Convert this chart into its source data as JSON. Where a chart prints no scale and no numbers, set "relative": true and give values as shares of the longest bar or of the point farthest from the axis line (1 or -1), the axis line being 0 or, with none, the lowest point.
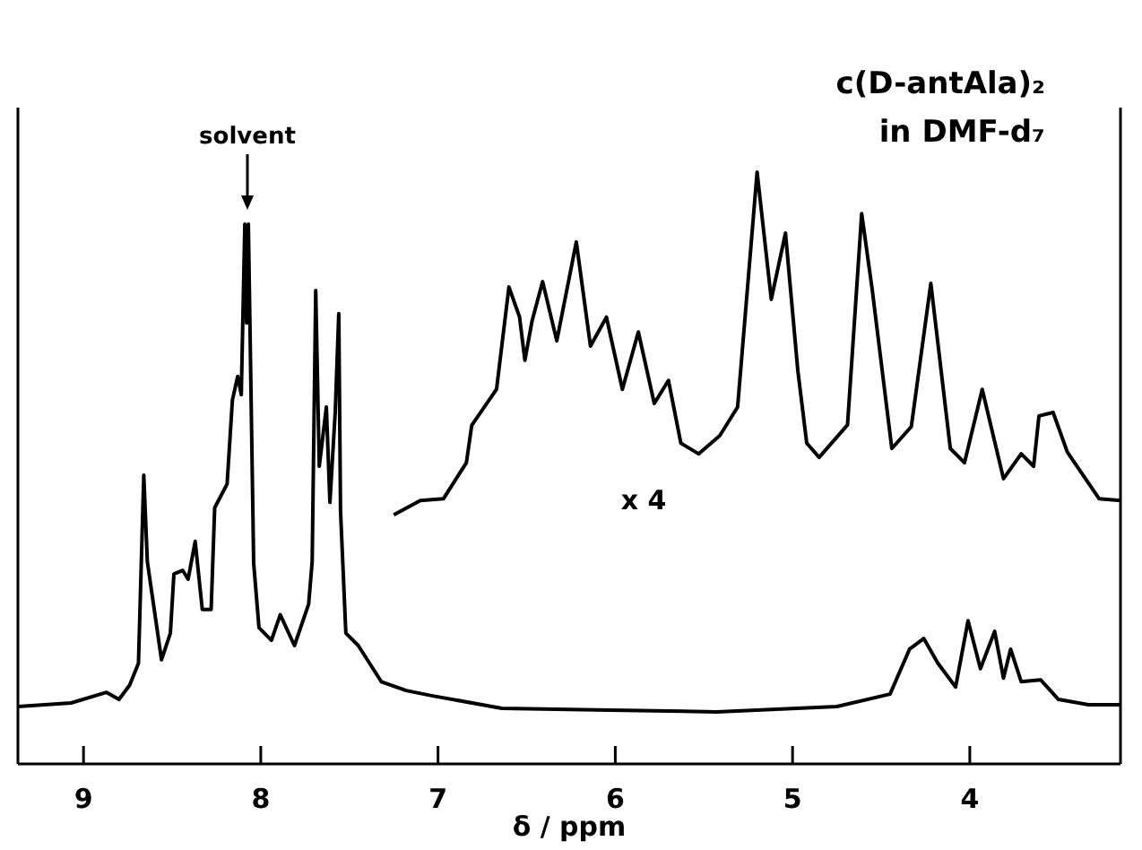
{
  "chart_data": {
    "type": "line",
    "title": "c(D-antAla)₂",
    "subtitle": "in DMF-d₇",
    "xlabel": "δ / ppm",
    "relative": true,
    "xlim": [
      9.37,
      3.15
    ],
    "xticks": [
      9,
      8,
      7,
      6,
      5,
      4
    ],
    "grid": false,
    "marker": "none",
    "line_style": "solid",
    "annotations": [
      "solvent",
      "x 4"
    ],
    "series": [
      {
        "color": "#000000",
        "x": [
          9.37,
          9.07,
          8.87,
          8.8,
          8.74,
          8.69,
          8.66,
          8.64,
          8.56,
          8.51,
          8.49,
          8.44,
          8.41,
          8.37,
          8.33,
          8.28,
          8.26,
          8.19,
          8.16,
          8.13,
          8.11,
          8.09,
          8.08,
          8.07,
          8.04,
          8.01,
          7.94,
          7.89,
          7.81,
          7.73,
          7.71,
          7.69,
          7.67,
          7.63,
          7.61,
          7.58,
          7.56,
          7.55,
          7.52,
          7.45,
          7.32,
          7.18,
          7.03,
          6.64,
          6.03,
          5.43,
          4.75,
          4.45,
          4.34,
          4.26,
          4.18,
          4.08,
          4.01,
          3.94,
          3.86,
          3.81,
          3.77,
          3.71,
          3.6,
          3.5,
          3.33,
          3.15
        ],
        "values": [
          0.097,
          0.103,
          0.121,
          0.109,
          0.133,
          0.17,
          0.488,
          0.342,
          0.176,
          0.221,
          0.321,
          0.327,
          0.312,
          0.376,
          0.261,
          0.261,
          0.433,
          0.473,
          0.615,
          0.655,
          0.624,
          0.912,
          0.745,
          0.912,
          0.339,
          0.23,
          0.209,
          0.252,
          0.2,
          0.27,
          0.342,
          0.8,
          0.503,
          0.603,
          0.442,
          0.594,
          0.761,
          0.427,
          0.221,
          0.2,
          0.139,
          0.124,
          0.115,
          0.094,
          0.091,
          0.088,
          0.097,
          0.118,
          0.194,
          0.212,
          0.17,
          0.13,
          0.242,
          0.161,
          0.224,
          0.145,
          0.194,
          0.139,
          0.142,
          0.109,
          0.1,
          0.1
        ]
      },
      {
        "color": "#000000",
        "x": [
          7.25,
          7.1,
          6.97,
          6.84,
          6.81,
          6.67,
          6.6,
          6.54,
          6.51,
          6.47,
          6.41,
          6.33,
          6.22,
          6.14,
          6.05,
          5.96,
          5.87,
          5.78,
          5.7,
          5.63,
          5.53,
          5.41,
          5.31,
          5.2,
          5.12,
          5.04,
          4.97,
          4.92,
          4.85,
          4.69,
          4.61,
          4.55,
          4.44,
          4.33,
          4.22,
          4.11,
          4.03,
          3.93,
          3.81,
          3.71,
          3.64,
          3.61,
          3.53,
          3.45,
          3.27,
          3.15
        ],
        "values": [
          0.421,
          0.445,
          0.448,
          0.509,
          0.572,
          0.633,
          0.806,
          0.755,
          0.682,
          0.748,
          0.815,
          0.715,
          0.882,
          0.706,
          0.755,
          0.633,
          0.73,
          0.609,
          0.648,
          0.542,
          0.524,
          0.555,
          0.603,
          1.0,
          0.785,
          0.897,
          0.664,
          0.542,
          0.518,
          0.573,
          0.93,
          0.8,
          0.533,
          0.57,
          0.812,
          0.533,
          0.509,
          0.633,
          0.482,
          0.524,
          0.503,
          0.588,
          0.594,
          0.527,
          0.448,
          0.445
        ]
      }
    ]
  }
}
